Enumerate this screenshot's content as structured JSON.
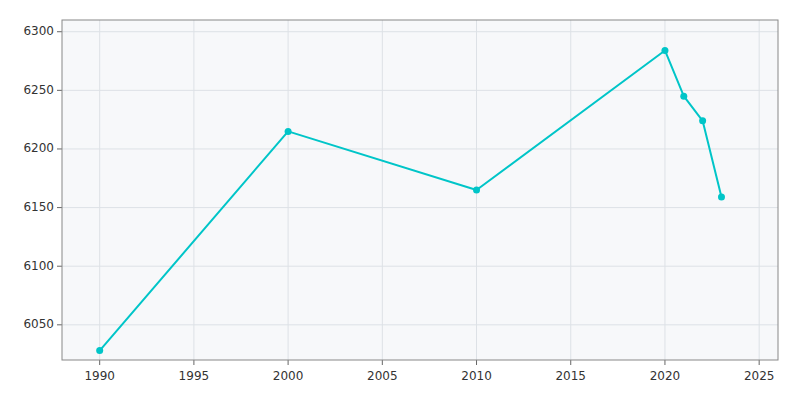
{
  "chart_data": {
    "type": "line",
    "x": [
      1990,
      2000,
      2010,
      2020,
      2021,
      2022,
      2023
    ],
    "values": [
      6028,
      6215,
      6165,
      6284,
      6245,
      6224,
      6159
    ],
    "color": "#00C5C8",
    "marker": "circle",
    "xlim": [
      1988,
      2026
    ],
    "ylim": [
      6020,
      6310
    ],
    "xticks": [
      1990,
      1995,
      2000,
      2005,
      2010,
      2015,
      2020,
      2025
    ],
    "yticks": [
      6050,
      6100,
      6150,
      6200,
      6250,
      6300
    ],
    "grid": true
  }
}
